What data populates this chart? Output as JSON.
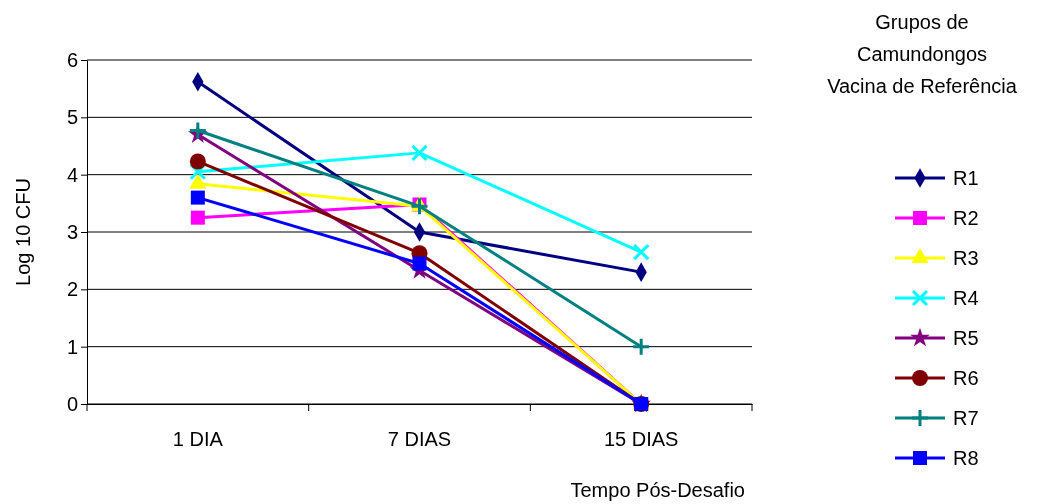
{
  "chart_data": {
    "type": "line",
    "xlabel": "Tempo Pós-Desafio",
    "ylabel": "Log 10 CFU",
    "legend_title": "Grupos de\nCamundongos\nVacina de Referência",
    "categories": [
      "1 DIA",
      "7 DIAS",
      "15 DIAS"
    ],
    "ylim": [
      0,
      6
    ],
    "yticks": [
      0,
      1,
      2,
      3,
      4,
      5,
      6
    ],
    "grid": "y",
    "legend": "right",
    "series": [
      {
        "name": "R1",
        "color": "#000080",
        "marker": "diamond",
        "values": [
          5.62,
          3.0,
          2.3
        ]
      },
      {
        "name": "R2",
        "color": "#ff00ff",
        "marker": "square",
        "values": [
          3.25,
          3.48,
          0
        ]
      },
      {
        "name": "R3",
        "color": "#ffff00",
        "marker": "triangle",
        "values": [
          3.84,
          3.45,
          0
        ]
      },
      {
        "name": "R4",
        "color": "#00ffff",
        "marker": "x",
        "values": [
          4.05,
          4.38,
          2.65
        ]
      },
      {
        "name": "R5",
        "color": "#800080",
        "marker": "star",
        "values": [
          4.7,
          2.33,
          0
        ]
      },
      {
        "name": "R6",
        "color": "#800000",
        "marker": "circle",
        "values": [
          4.23,
          2.63,
          0
        ]
      },
      {
        "name": "R7",
        "color": "#008080",
        "marker": "cross",
        "values": [
          4.77,
          3.45,
          1.0
        ]
      },
      {
        "name": "R8",
        "color": "#0000ff",
        "marker": "square",
        "values": [
          3.6,
          2.45,
          0
        ]
      }
    ]
  }
}
